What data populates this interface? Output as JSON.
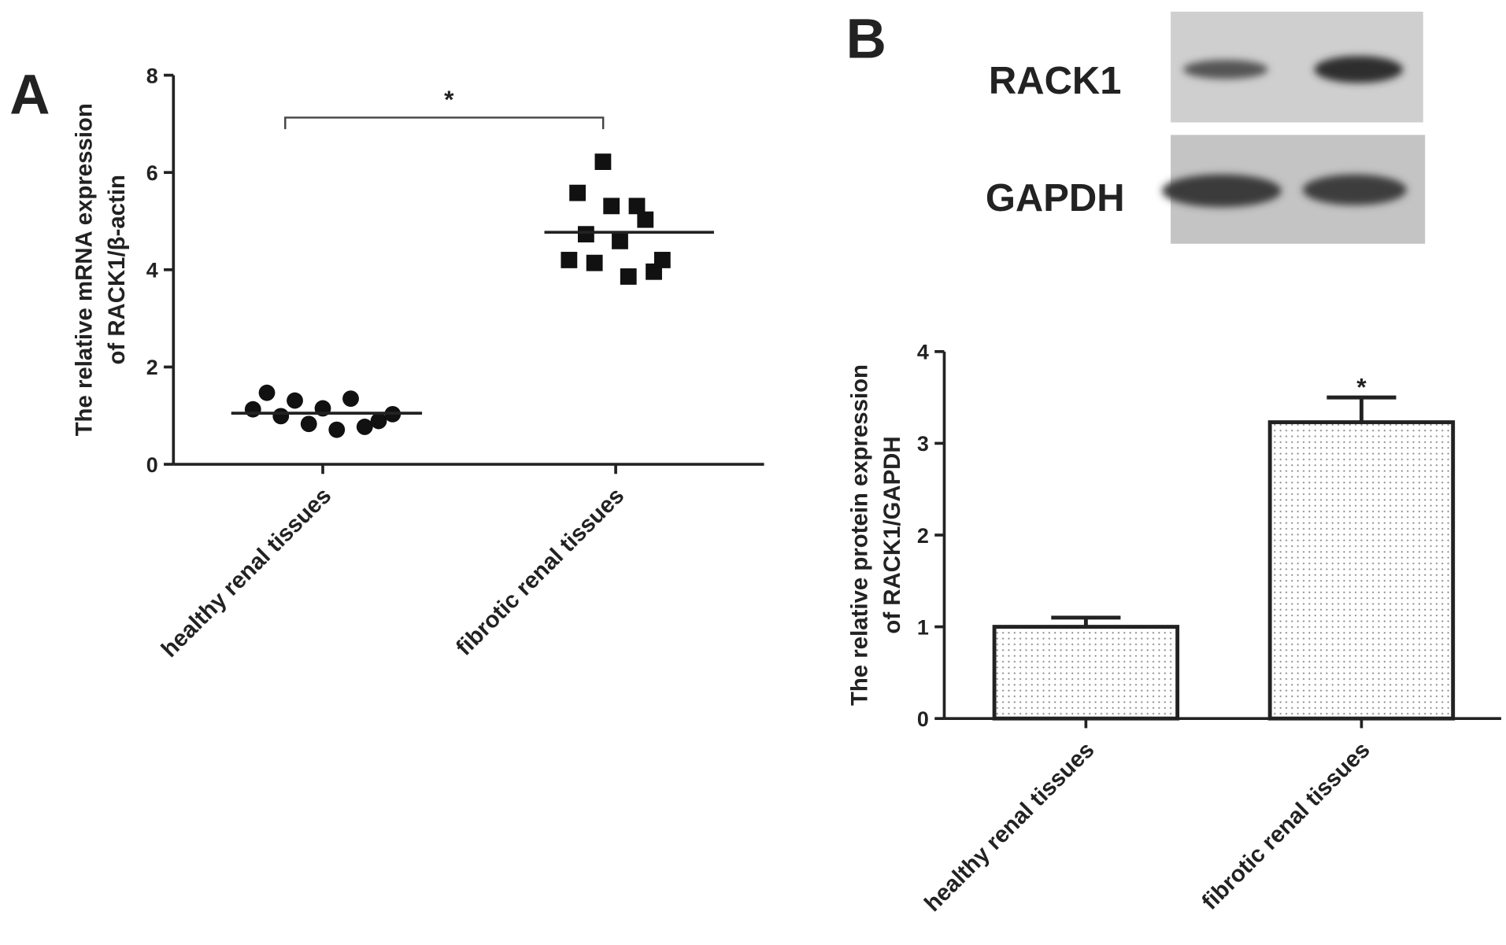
{
  "chart_data": [
    {
      "type": "scatter",
      "panel": "A",
      "ylabel": [
        "The relative mRNA expression",
        "of RACK1/β-actin"
      ],
      "categories": [
        "healthy renal tissues",
        "fibrotic renal tissues"
      ],
      "series": [
        {
          "marker": "circle",
          "color": "#111111",
          "values": [
            1.13,
            1.47,
            0.99,
            1.31,
            0.83,
            1.15,
            0.71,
            1.35,
            0.77,
            0.89,
            1.03
          ],
          "mean": 1.05
        },
        {
          "marker": "square",
          "color": "#111111",
          "values": [
            4.2,
            5.58,
            4.73,
            4.14,
            6.22,
            5.31,
            4.59,
            3.86,
            5.31,
            5.03,
            3.96,
            4.2
          ],
          "mean": 4.77
        }
      ],
      "ylim": [
        0,
        8
      ],
      "yticks": [
        0,
        2,
        4,
        6,
        8
      ],
      "annotation": "*"
    },
    {
      "type": "bar",
      "panel": "B",
      "blot_labels": [
        "RACK1",
        "GAPDH"
      ],
      "ylabel": [
        "The relative protein expression",
        "of RACK1/GAPDH"
      ],
      "categories": [
        "healthy renal tissues",
        "fibrotic renal  tissues"
      ],
      "values": [
        1.0,
        3.23
      ],
      "errors": [
        0.1,
        0.27
      ],
      "value_labels": [
        null,
        "*"
      ],
      "ylim": [
        0,
        4
      ],
      "yticks": [
        0,
        1,
        2,
        3,
        4
      ]
    }
  ]
}
